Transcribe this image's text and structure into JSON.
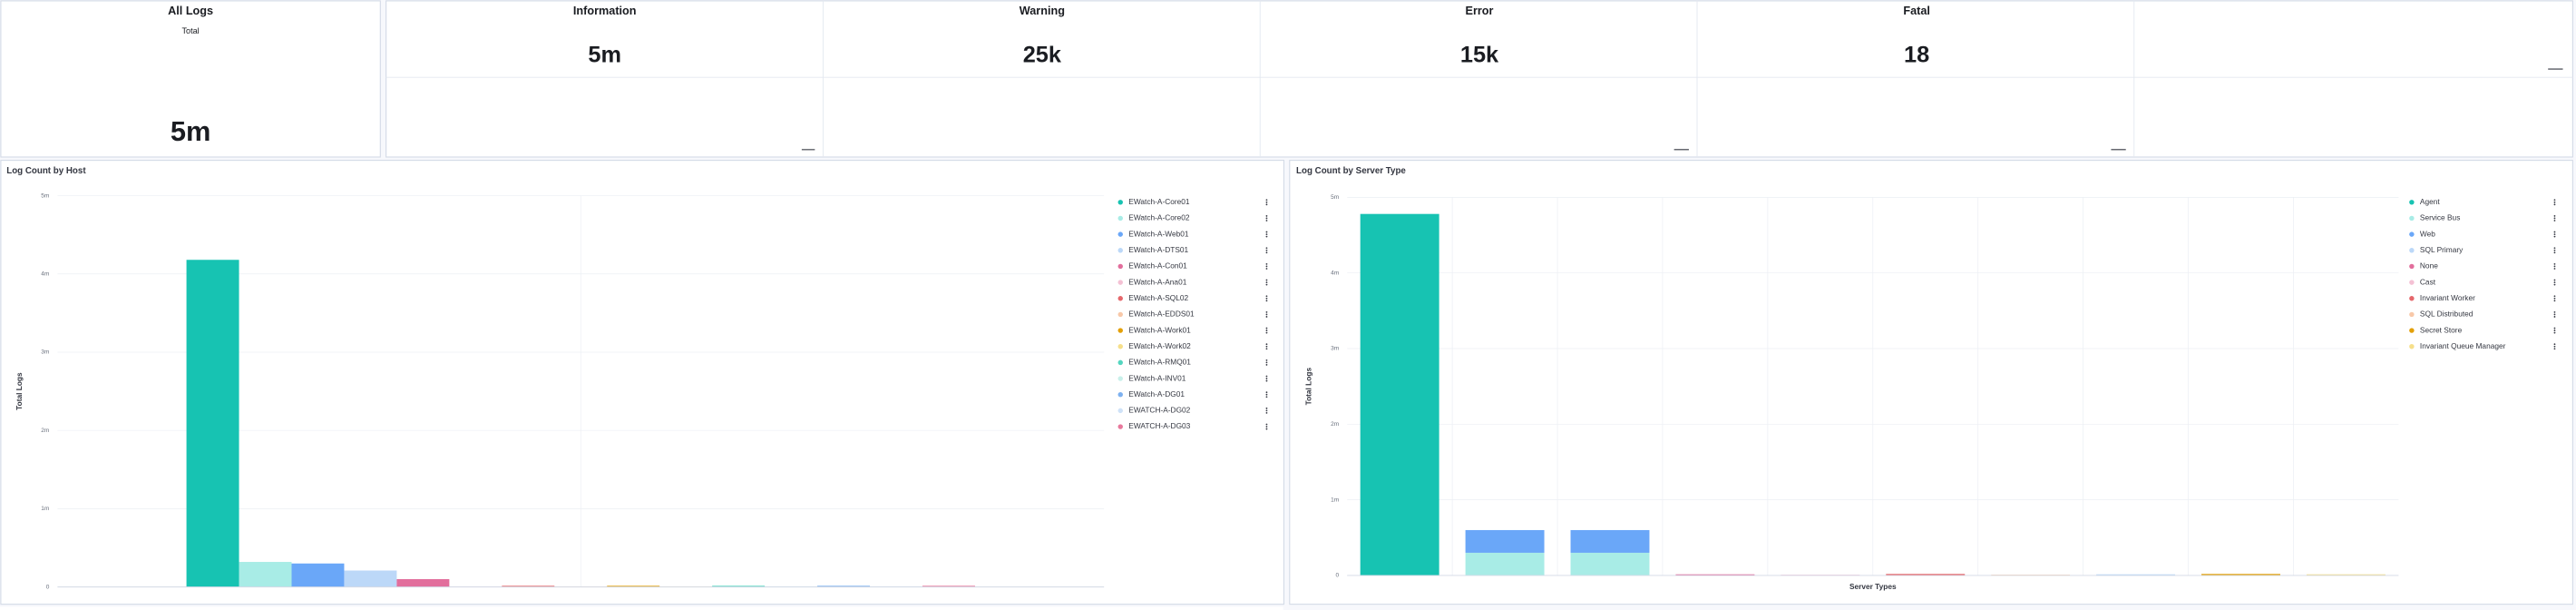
{
  "stats": {
    "all_logs": {
      "title": "All Logs",
      "subtitle": "Total",
      "value": "5m"
    },
    "levels": [
      {
        "name": "Information",
        "value": "5m"
      },
      {
        "name": "Warning",
        "value": "25k"
      },
      {
        "name": "Error",
        "value": "15k"
      },
      {
        "name": "Fatal",
        "value": "18"
      }
    ]
  },
  "chart_data": [
    {
      "type": "bar",
      "title": "Log Count by Host",
      "y_label": "Total Logs",
      "categories": [
        "EWatch-A-Core01",
        "EWatch-A-Core02",
        "EWatch-A-Web01",
        "EWatch-A-DTS01",
        "EWatch-A-Con01",
        "EWatch-A-Ana01",
        "EWatch-A-SQL02",
        "EWatch-A-EDDS01",
        "EWatch-A-Work01",
        "EWatch-A-Work02",
        "EWatch-A-RMQ01",
        "EWatch-A-INV01",
        "EWatch-A-DG01",
        "EWATCH-A-DG02",
        "EWATCH-A-DG03"
      ],
      "values": [
        4180000,
        320000,
        300000,
        210000,
        100000,
        5000,
        15000,
        5000,
        15000,
        5000,
        15000,
        5000,
        15000,
        5000,
        15000
      ],
      "colors": [
        "#17c3b2",
        "#a8ece6",
        "#6aa7f8",
        "#bcd8f8",
        "#e26e9c",
        "#f4c1d4",
        "#e5676b",
        "#f8c8a8",
        "#e3a008",
        "#f6df8a",
        "#54d6c0",
        "#c8f0ea",
        "#7db1f0",
        "#cfe2f8",
        "#e8789c"
      ],
      "ylim": [
        0,
        5000000
      ],
      "yticks": [
        0,
        {
          "value": 1000000,
          "label": "1m"
        },
        {
          "value": 2000000,
          "label": "2m"
        },
        {
          "value": 3000000,
          "label": "3m"
        },
        {
          "value": 4000000,
          "label": "4m"
        },
        {
          "value": 5000000,
          "label": "5m"
        }
      ],
      "grid": true,
      "legend": "right"
    },
    {
      "type": "stacked_bar",
      "title": "Log Count by Server Type",
      "x_label": "Server Types",
      "y_label": "Total Logs",
      "categories": [
        null,
        null,
        null,
        null,
        null,
        null,
        null,
        null,
        null,
        null
      ],
      "series": [
        {
          "name": "Agent",
          "color": "#17c3b2",
          "values": [
            4780000,
            0,
            0,
            0,
            0,
            0,
            0,
            0,
            0,
            0
          ]
        },
        {
          "name": "Service Bus",
          "color": "#a8ece6",
          "values": [
            0,
            300000,
            300000,
            0,
            0,
            0,
            0,
            0,
            0,
            0
          ]
        },
        {
          "name": "Web",
          "color": "#6aa7f8",
          "values": [
            0,
            300000,
            300000,
            0,
            0,
            0,
            0,
            0,
            0,
            0
          ]
        },
        {
          "name": "SQL Primary",
          "color": "#bcd8f8",
          "values": [
            0,
            0,
            0,
            0,
            0,
            0,
            0,
            15000,
            0,
            0
          ]
        },
        {
          "name": "None",
          "color": "#e26e9c",
          "values": [
            0,
            0,
            0,
            15000,
            0,
            0,
            0,
            0,
            0,
            0
          ]
        },
        {
          "name": "Cast",
          "color": "#f4c1d4",
          "values": [
            0,
            0,
            0,
            0,
            10000,
            0,
            0,
            0,
            0,
            0
          ]
        },
        {
          "name": "Invariant Worker",
          "color": "#e5676b",
          "values": [
            0,
            0,
            0,
            0,
            0,
            20000,
            0,
            0,
            0,
            0
          ]
        },
        {
          "name": "SQL Distributed",
          "color": "#f8c8a8",
          "values": [
            0,
            0,
            0,
            0,
            0,
            0,
            10000,
            0,
            0,
            0
          ]
        },
        {
          "name": "Secret Store",
          "color": "#e3a008",
          "values": [
            0,
            0,
            0,
            0,
            0,
            0,
            0,
            0,
            20000,
            0
          ]
        },
        {
          "name": "Invariant Queue Manager",
          "color": "#f6df8a",
          "values": [
            0,
            0,
            0,
            0,
            0,
            0,
            0,
            0,
            0,
            15000
          ]
        }
      ],
      "ylim": [
        0,
        5000000
      ],
      "yticks": [
        0,
        {
          "value": 1000000,
          "label": "1m"
        },
        {
          "value": 2000000,
          "label": "2m"
        },
        {
          "value": 3000000,
          "label": "3m"
        },
        {
          "value": 4000000,
          "label": "4m"
        },
        {
          "value": 5000000,
          "label": "5m"
        }
      ],
      "grid": true,
      "legend": "right"
    }
  ]
}
